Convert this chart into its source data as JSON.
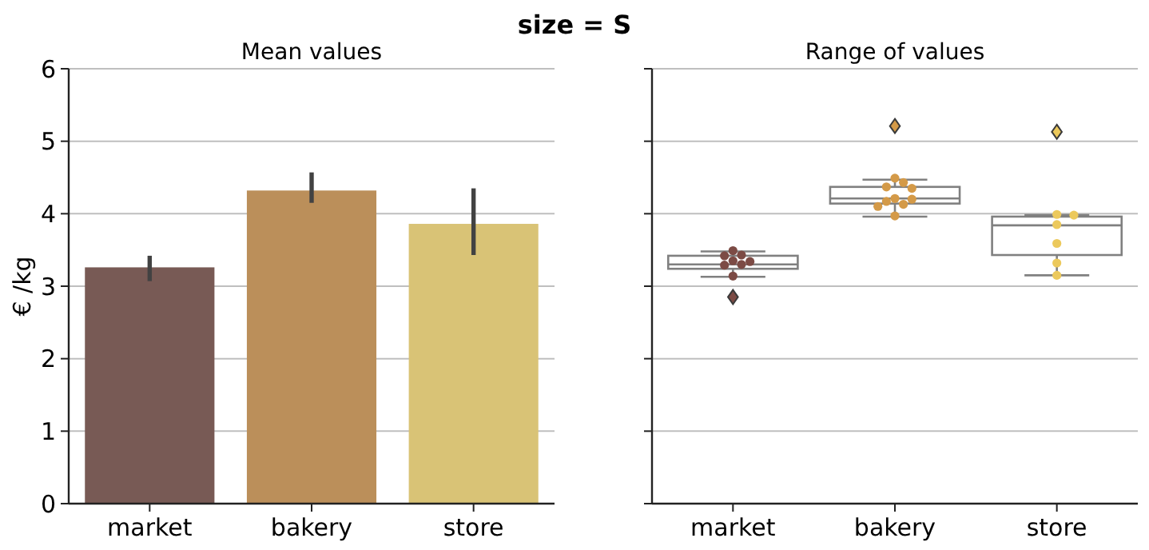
{
  "chart_data": [
    {
      "type": "bar",
      "title": "Mean values",
      "annotations": [
        "size = S"
      ],
      "ylabel": "€ /kg",
      "categories": [
        "market",
        "bakery",
        "store"
      ],
      "values": [
        3.26,
        4.32,
        3.86
      ],
      "colors": [
        "#785a55",
        "#bb8f5a",
        "#d9c376"
      ],
      "errors": [
        [
          3.07,
          3.42
        ],
        [
          4.15,
          4.57
        ],
        [
          3.43,
          4.35
        ]
      ],
      "ylim": [
        0,
        6
      ],
      "yticks": [
        0,
        1,
        2,
        3,
        4,
        5,
        6
      ],
      "grid": "y"
    },
    {
      "type": "box",
      "title": "Range of values",
      "categories": [
        "market",
        "bakery",
        "store"
      ],
      "ylim": [
        0,
        6
      ],
      "yticks": [
        0,
        1,
        2,
        3,
        4,
        5,
        6
      ],
      "grid": "y",
      "tick_labels": "x",
      "series": [
        {
          "color": "#808080",
          "boxes": [
            {
              "low": 3.13,
              "q1": 3.24,
              "median": 3.3,
              "q3": 3.42,
              "high": 3.48,
              "outliers": [
                2.85
              ]
            },
            {
              "low": 3.96,
              "q1": 4.14,
              "median": 4.21,
              "q3": 4.37,
              "high": 4.47,
              "outliers": [
                5.21
              ]
            },
            {
              "low": 3.15,
              "q1": 3.43,
              "median": 3.84,
              "q3": 3.96,
              "high": 3.98,
              "outliers": [
                5.13
              ]
            }
          ]
        },
        {
          "type": "scatter",
          "color": "#7c4b45",
          "marker": "circle",
          "x": [
            "market",
            "market",
            "market",
            "market",
            "market",
            "market",
            "market",
            "market"
          ],
          "values": [
            3.49,
            3.43,
            3.42,
            3.35,
            3.34,
            3.3,
            3.29,
            3.14
          ]
        },
        {
          "type": "scatter",
          "color": "#d49a48",
          "marker": "circle",
          "x": [
            "bakery",
            "bakery",
            "bakery",
            "bakery",
            "bakery",
            "bakery",
            "bakery",
            "bakery",
            "bakery",
            "bakery"
          ],
          "values": [
            4.49,
            4.43,
            4.37,
            4.35,
            4.21,
            4.2,
            4.17,
            4.13,
            4.1,
            3.97
          ]
        },
        {
          "type": "scatter",
          "color": "#ecc95c",
          "marker": "circle",
          "x": [
            "store",
            "store",
            "store",
            "store",
            "store",
            "store"
          ],
          "values": [
            3.99,
            3.98,
            3.85,
            3.59,
            3.32,
            3.15
          ]
        }
      ]
    }
  ]
}
